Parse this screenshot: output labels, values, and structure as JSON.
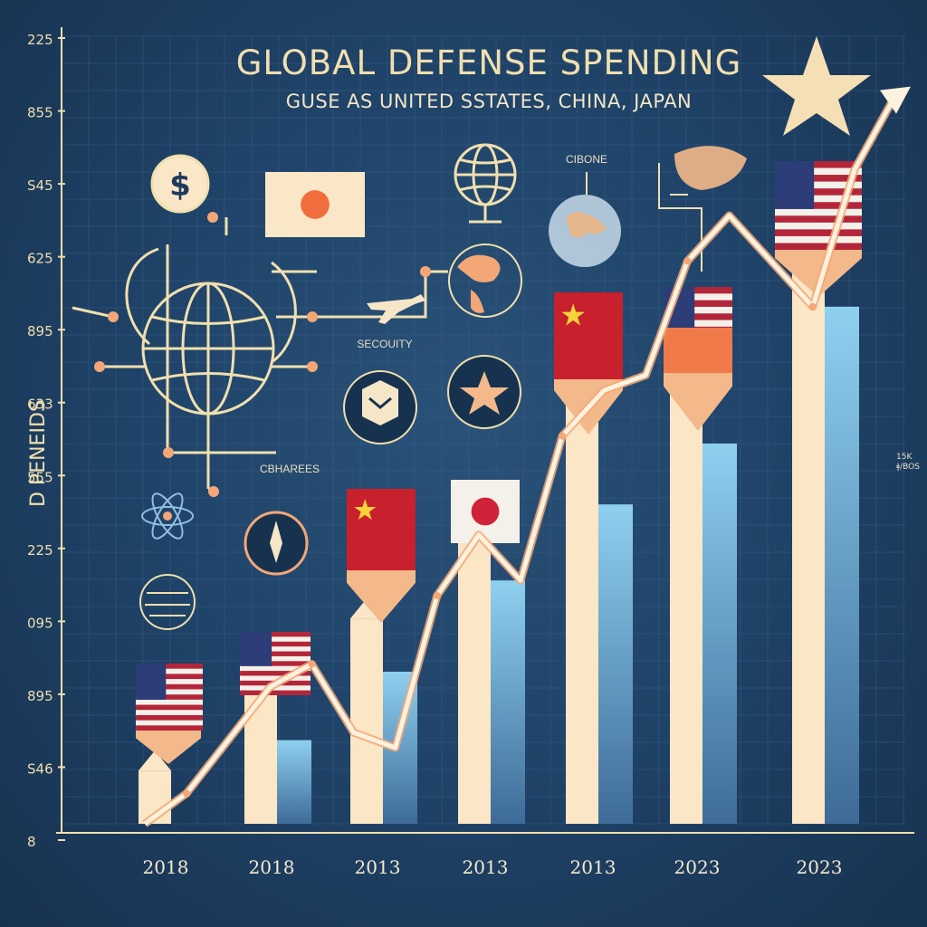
{
  "chart_data": {
    "type": "bar",
    "title": "GLOBAL DEFENSE SPENDING",
    "subtitle": "GUSE AS UNITED SSTATES, CHINA,  JAPAN",
    "ylabel": "D PENEIDS",
    "categories": [
      "2018",
      "2018",
      "2013",
      "2013",
      "2013",
      "2023",
      "2023"
    ],
    "yticks": [
      "225",
      "855",
      "S45",
      "625",
      "895",
      "633",
      "555",
      "225",
      "095",
      "895",
      "S46",
      "8"
    ],
    "series": [
      {
        "values": [
          0.07,
          0.17,
          0.27,
          0.42,
          0.55,
          0.62,
          0.79
        ]
      },
      {
        "values": [
          0,
          0.11,
          0.2,
          0.32,
          0.42,
          0.5,
          0.68
        ]
      }
    ],
    "trend": [
      0.0,
      0.04,
      0.11,
      0.18,
      0.21,
      0.12,
      0.1,
      0.3,
      0.38,
      0.32,
      0.51,
      0.57,
      0.59,
      0.74,
      0.8,
      0.74,
      0.68,
      0.86,
      0.96
    ]
  },
  "labels": {
    "security": "SECOUITY",
    "charges": "CBHAREES",
    "cibone": "CIBONE",
    "right_note": "15K ǂ/BOS"
  },
  "colors": {
    "background": "#20446a",
    "cream": "#fbe6c6",
    "blue": "#5e8fc0",
    "accent_line": "#f3a777",
    "text": "#f0dfae"
  }
}
